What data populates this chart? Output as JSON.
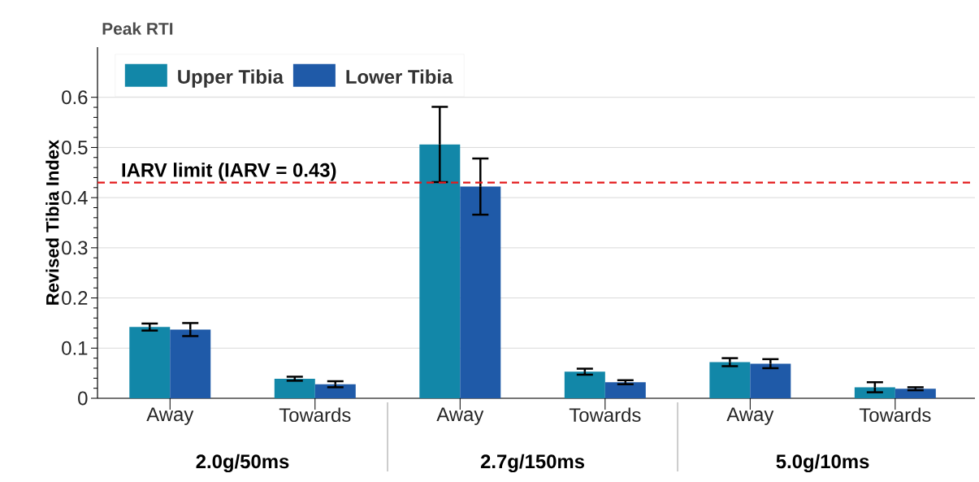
{
  "chart_data": {
    "type": "bar",
    "title": "Peak RTI",
    "ylabel": "Revised Tibia Index",
    "categories": [
      "Away",
      "Towards",
      "Away",
      "Towards",
      "Away",
      "Towards"
    ],
    "annotations": [
      "2.0g/50ms",
      "2.7g/150ms",
      "5.0g/10ms"
    ],
    "series": [
      {
        "name": "Upper Tibia",
        "color": "#1287a8",
        "values": [
          0.142,
          0.039,
          0.506,
          0.053,
          0.072,
          0.022
        ],
        "errors": [
          0.007,
          0.004,
          0.075,
          0.006,
          0.008,
          0.01
        ]
      },
      {
        "name": "Lower Tibia",
        "color": "#1f5aa8",
        "values": [
          0.137,
          0.028,
          0.422,
          0.032,
          0.069,
          0.019
        ],
        "errors": [
          0.013,
          0.006,
          0.056,
          0.004,
          0.009,
          0.003
        ]
      }
    ],
    "ylim": [
      0,
      0.7
    ],
    "yticks": [
      0,
      0.1,
      0.2,
      0.3,
      0.4,
      0.5,
      0.6
    ],
    "ref_lines": [
      {
        "axis": "y",
        "value": 0.43,
        "label": "IARV limit (IARV = 0.43)",
        "color": "#e31a1c",
        "line_style": "dashed"
      }
    ],
    "grid": "y",
    "legend": "top left"
  }
}
